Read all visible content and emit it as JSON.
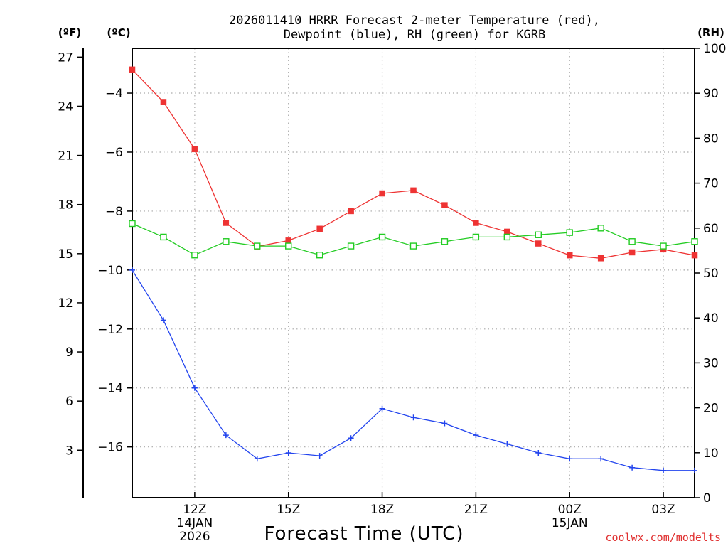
{
  "chart_data": {
    "type": "line",
    "title_line1": "2026011410 HRRR Forecast 2-meter Temperature (red),",
    "title_line2": "Dewpoint (blue), RH (green) for KGRB",
    "xlabel": "Forecast Time (UTC)",
    "credit": "coolwx.com/modelts",
    "axes": {
      "celsius": {
        "unit": "(ºC)",
        "ticks": [
          -4,
          -6,
          -8,
          -10,
          -12,
          -14,
          -16
        ],
        "range": [
          -17.72,
          -2.48
        ]
      },
      "fahrenheit": {
        "unit": "(ºF)",
        "ticks": [
          27,
          24,
          21,
          18,
          15,
          12,
          9,
          6,
          3
        ]
      },
      "rh": {
        "unit": "(RH)",
        "ticks": [
          100,
          90,
          80,
          70,
          60,
          50,
          40,
          30,
          20,
          10,
          0
        ],
        "range": [
          0,
          100
        ]
      }
    },
    "x_hours": [
      10,
      11,
      12,
      13,
      14,
      15,
      16,
      17,
      18,
      19,
      20,
      21,
      22,
      23,
      24,
      25,
      26,
      27,
      28
    ],
    "x_range": [
      10,
      28
    ],
    "x_ticks": [
      {
        "hour": 12,
        "label": "12Z",
        "date": "14JAN",
        "year": "2026"
      },
      {
        "hour": 15,
        "label": "15Z"
      },
      {
        "hour": 18,
        "label": "18Z"
      },
      {
        "hour": 21,
        "label": "21Z"
      },
      {
        "hour": 24,
        "label": "00Z",
        "date": "15JAN"
      },
      {
        "hour": 27,
        "label": "03Z"
      }
    ],
    "series": [
      {
        "name": "Temperature",
        "axis": "celsius",
        "color": "#ee3333",
        "marker": "filled-square",
        "values": [
          -3.2,
          -4.3,
          -5.9,
          -8.4,
          -9.2,
          -9.0,
          -8.6,
          -8.0,
          -7.4,
          -7.3,
          -7.8,
          -8.4,
          -8.7,
          -9.1,
          -9.5,
          -9.6,
          -9.4,
          -9.3,
          -9.5
        ]
      },
      {
        "name": "Dewpoint",
        "axis": "celsius",
        "color": "#2244ee",
        "marker": "plus",
        "values": [
          -10.0,
          -11.7,
          -14.0,
          -15.6,
          -16.4,
          -16.2,
          -16.3,
          -15.7,
          -14.7,
          -15.0,
          -15.2,
          -15.6,
          -15.9,
          -16.2,
          -16.4,
          -16.4,
          -16.7,
          -16.8,
          -16.8
        ]
      },
      {
        "name": "RH",
        "axis": "rh",
        "color": "#22cc22",
        "marker": "open-square",
        "values": [
          61,
          58,
          54,
          57,
          56,
          56,
          54,
          56,
          58,
          56,
          57,
          58,
          58,
          58.5,
          59,
          60,
          57,
          56,
          57
        ]
      }
    ]
  }
}
